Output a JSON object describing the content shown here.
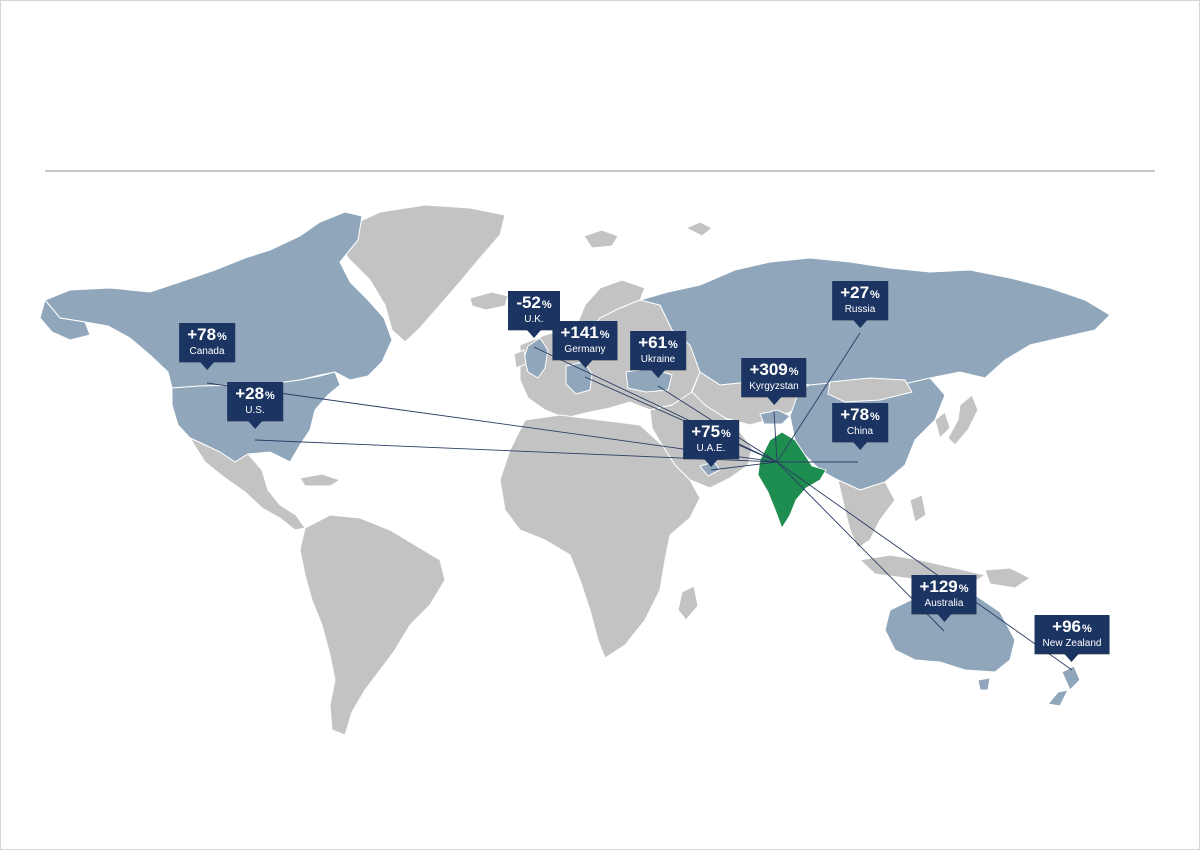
{
  "colors": {
    "background": "#ffffff",
    "divider": "#c9c9c9",
    "land_default": "#c3c3c3",
    "land_highlight": "#8fa6bb",
    "origin_country": "#1e8d50",
    "callout": "#1c3461",
    "connector": "#2b3d63"
  },
  "origin": "India",
  "markers": [
    {
      "id": "canada",
      "value": "+78",
      "unit": "%",
      "label": "Canada"
    },
    {
      "id": "us",
      "value": "+28",
      "unit": "%",
      "label": "U.S."
    },
    {
      "id": "uk",
      "value": "-52",
      "unit": "%",
      "label": "U.K."
    },
    {
      "id": "germany",
      "value": "+141",
      "unit": "%",
      "label": "Germany"
    },
    {
      "id": "ukraine",
      "value": "+61",
      "unit": "%",
      "label": "Ukraine"
    },
    {
      "id": "russia",
      "value": "+27",
      "unit": "%",
      "label": "Russia"
    },
    {
      "id": "kyrgyzstan",
      "value": "+309",
      "unit": "%",
      "label": "Kyrgyzstan"
    },
    {
      "id": "china",
      "value": "+78",
      "unit": "%",
      "label": "China"
    },
    {
      "id": "uae",
      "value": "+75",
      "unit": "%",
      "label": "U.A.E."
    },
    {
      "id": "australia",
      "value": "+129",
      "unit": "%",
      "label": "Australia"
    },
    {
      "id": "newzealand",
      "value": "+96",
      "unit": "%",
      "label": "New Zealand"
    }
  ]
}
